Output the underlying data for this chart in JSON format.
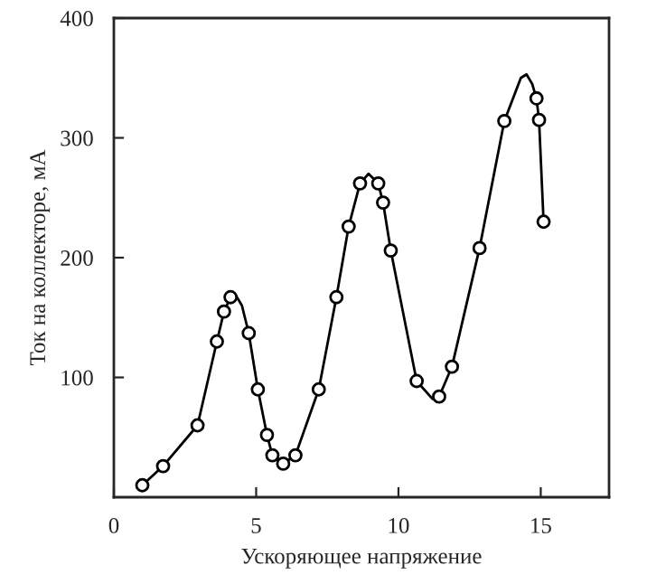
{
  "chart_data": {
    "type": "line",
    "xlabel": "Ускоряющее напряжение",
    "ylabel": "Ток на коллекторе, мА",
    "xlim": [
      0,
      17.4
    ],
    "ylim": [
      0,
      400
    ],
    "xticks": [
      0,
      5,
      10,
      15
    ],
    "yticks": [
      100,
      200,
      300,
      400
    ],
    "grid": false,
    "legend": false,
    "series": [
      {
        "color": "#000000",
        "marker": "none",
        "line_style": "solid",
        "x": [
          1.0,
          1.73,
          2.94,
          3.62,
          3.87,
          4.1,
          4.3,
          4.5,
          4.74,
          5.06,
          5.38,
          5.57,
          5.95,
          6.38,
          7.2,
          7.82,
          8.25,
          8.65,
          8.95,
          9.29,
          9.46,
          9.73,
          10.64,
          11.2,
          11.43,
          11.88,
          12.85,
          13.72,
          14.3,
          14.5,
          14.7,
          14.85,
          14.94,
          15.1
        ],
        "values": [
          10,
          26,
          60,
          130,
          155,
          167,
          168,
          160,
          137,
          90,
          52,
          35,
          28,
          35,
          90,
          167,
          226,
          262,
          270,
          262,
          246,
          206,
          97,
          82,
          84,
          109,
          208,
          314,
          350,
          353,
          345,
          333,
          315,
          230
        ]
      },
      {
        "type": "scatter",
        "color": "#000000",
        "marker": "circle",
        "x": [
          1.0,
          1.73,
          2.94,
          3.62,
          3.87,
          4.1,
          4.74,
          5.06,
          5.38,
          5.57,
          5.95,
          6.38,
          7.2,
          7.82,
          8.25,
          8.65,
          9.29,
          9.46,
          9.73,
          10.64,
          11.43,
          11.88,
          12.85,
          13.72,
          14.85,
          14.94,
          15.1
        ],
        "values": [
          10,
          26,
          60,
          130,
          155,
          167,
          137,
          90,
          52,
          35,
          28,
          35,
          90,
          167,
          226,
          262,
          262,
          246,
          206,
          97,
          84,
          109,
          208,
          314,
          333,
          315,
          230
        ]
      }
    ]
  }
}
